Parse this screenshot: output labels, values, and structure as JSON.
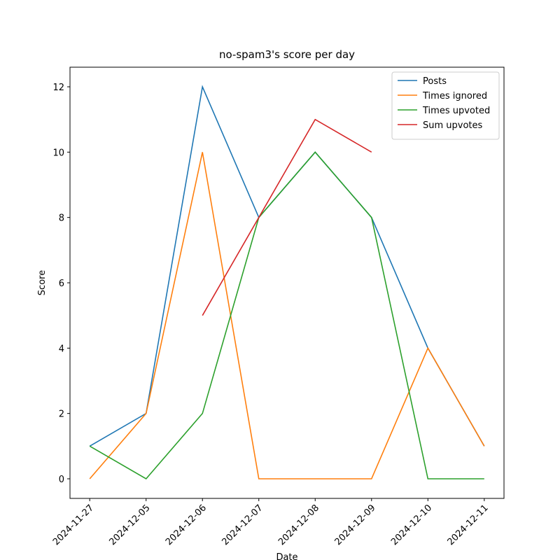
{
  "chart_data": {
    "type": "line",
    "title": "no-spam3's score per day",
    "x_label": "Date",
    "y_label": "Score",
    "categories": [
      "2024-11-27",
      "2024-12-05",
      "2024-12-06",
      "2024-12-07",
      "2024-12-08",
      "2024-12-09",
      "2024-12-10",
      "2024-12-11"
    ],
    "series": [
      {
        "name": "Posts",
        "color": "#1f77b4",
        "values": [
          1,
          2,
          12,
          8,
          10,
          8,
          4,
          1
        ]
      },
      {
        "name": "Times ignored",
        "color": "#ff7f0e",
        "values": [
          0,
          2,
          10,
          0,
          0,
          0,
          4,
          1
        ]
      },
      {
        "name": "Times upvoted",
        "color": "#2ca02c",
        "values": [
          1,
          0,
          2,
          8,
          10,
          8,
          0,
          0
        ]
      },
      {
        "name": "Sum upvotes",
        "color": "#d62728",
        "values": [
          null,
          null,
          5,
          8,
          11,
          10,
          null,
          null
        ]
      }
    ],
    "ylim": [
      -0.6,
      12.6
    ],
    "yticks": [
      0,
      2,
      4,
      6,
      8,
      10,
      12
    ],
    "grid": false,
    "legend": "upper right"
  }
}
